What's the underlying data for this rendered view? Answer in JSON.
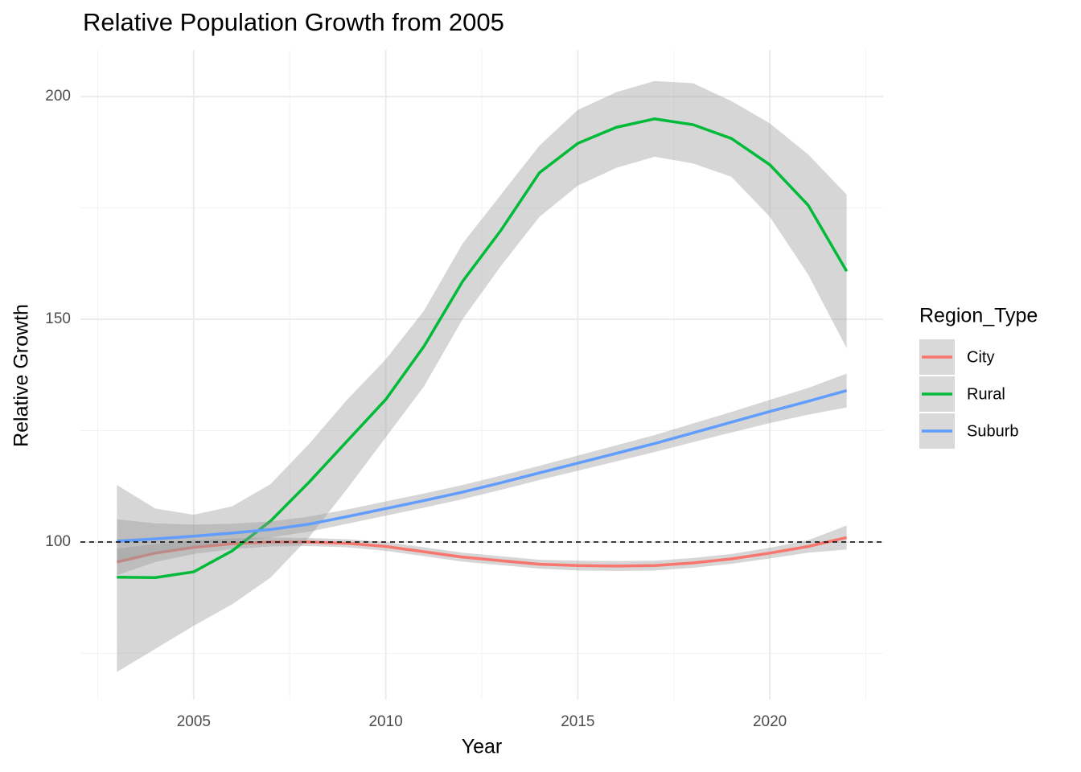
{
  "chart_data": {
    "type": "line",
    "title": "Relative Population Growth from 2005",
    "x_label": "Year",
    "y_label": "Relative Growth",
    "x": [
      2003,
      2004,
      2005,
      2006,
      2007,
      2008,
      2009,
      2010,
      2011,
      2012,
      2013,
      2014,
      2015,
      2016,
      2017,
      2018,
      2019,
      2020,
      2021,
      2022
    ],
    "series": [
      {
        "name": "City",
        "color": "#f8766d",
        "values": [
          95.5,
          97.5,
          98.8,
          99.6,
          100,
          100,
          99.7,
          99,
          97.8,
          96.6,
          95.8,
          95,
          94.7,
          94.6,
          94.7,
          95.3,
          96.2,
          97.5,
          99,
          101
        ],
        "lower": [
          92.5,
          95.5,
          97.3,
          98.4,
          99,
          99.1,
          98.8,
          98,
          96.8,
          95.6,
          94.8,
          94,
          93.6,
          93.5,
          93.6,
          94.2,
          95.1,
          96.3,
          97.6,
          98.3
        ],
        "upper": [
          98.5,
          99.5,
          100.3,
          100.8,
          101,
          100.9,
          100.6,
          100,
          98.8,
          97.6,
          96.8,
          96,
          95.8,
          95.7,
          95.8,
          96.4,
          97.3,
          98.7,
          100.4,
          103.7
        ]
      },
      {
        "name": "Rural",
        "color": "#00ba38",
        "values": [
          92.1,
          92,
          93.3,
          98,
          104.7,
          113.4,
          122.7,
          132,
          144,
          158.5,
          170,
          182.9,
          189.5,
          193.1,
          195,
          193.7,
          190.6,
          184.7,
          175.6,
          160.8
        ],
        "lower": [
          70.8,
          76,
          81.2,
          86,
          92,
          101,
          112,
          123.5,
          135,
          150,
          162,
          173,
          180,
          184,
          186.5,
          185,
          182,
          173,
          160,
          143.5
        ],
        "upper": [
          112.8,
          107.5,
          106.1,
          108,
          113,
          122,
          132,
          141,
          152,
          167,
          178,
          189,
          197,
          201,
          203.5,
          203,
          199,
          194,
          187,
          178
        ]
      },
      {
        "name": "Suburb",
        "color": "#619cff",
        "values": [
          100.2,
          100.7,
          101.3,
          102,
          102.8,
          104,
          105.7,
          107.5,
          109.3,
          111.2,
          113.3,
          115.5,
          117.7,
          119.9,
          122.1,
          124.5,
          126.9,
          129.3,
          131.6,
          134
        ],
        "lower": [
          95.3,
          97.2,
          98.7,
          99.9,
          101,
          102.3,
          104.1,
          105.9,
          107.7,
          109.6,
          111.7,
          113.9,
          116,
          118.1,
          120.2,
          122.4,
          124.6,
          126.7,
          128.6,
          130.2
        ],
        "upper": [
          105.1,
          104.2,
          103.9,
          104.1,
          104.6,
          105.7,
          107.3,
          109.1,
          110.9,
          112.8,
          114.9,
          117.1,
          119.4,
          121.7,
          124,
          126.6,
          129.2,
          131.9,
          134.6,
          137.8
        ]
      }
    ],
    "band_color": "#999999",
    "hline": 100,
    "xlim": [
      2002.05,
      2022.95
    ],
    "ylim": [
      64.6,
      210.5
    ],
    "xticks": [
      2005,
      2010,
      2015,
      2020
    ],
    "yticks": [
      100,
      150,
      200
    ],
    "minor_xgrid": [
      2002.5,
      2007.5,
      2012.5,
      2017.5,
      2022.5
    ],
    "minor_ygrid": [
      75,
      125,
      175
    ],
    "grid": true,
    "legend_title": "Region_Type",
    "legend_position": "right"
  }
}
